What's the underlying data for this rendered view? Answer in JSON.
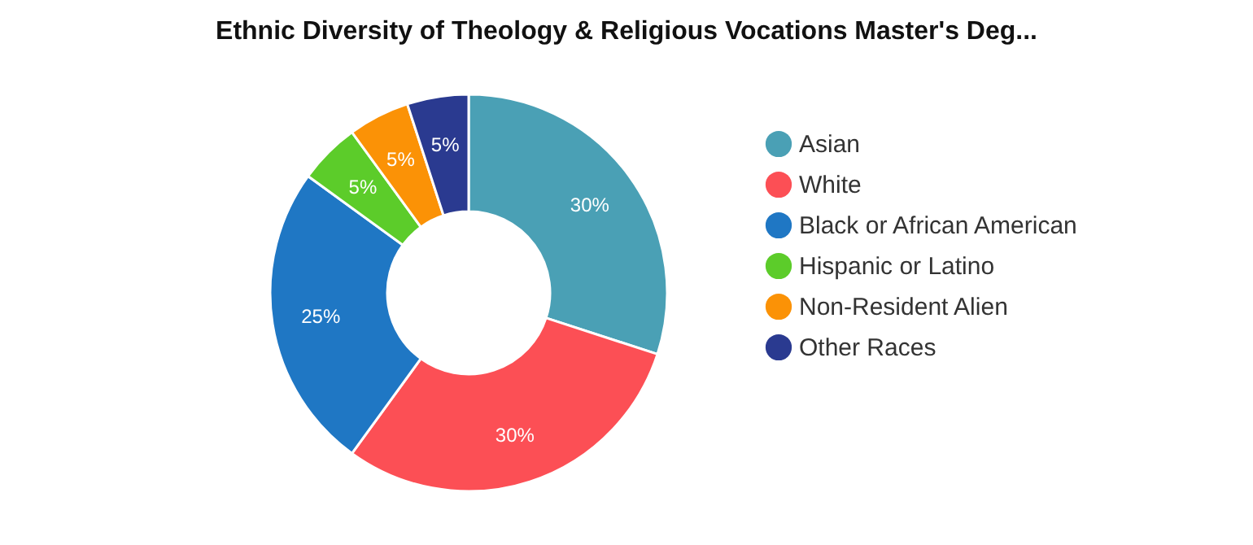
{
  "chart_data": {
    "type": "donut",
    "title": "Ethnic Diversity of Theology & Religious Vocations Master's Deg...",
    "categories": [
      "Asian",
      "White",
      "Black or African American",
      "Hispanic or Latino",
      "Non-Resident Alien",
      "Other Races"
    ],
    "values": [
      30,
      30,
      25,
      5,
      5,
      5
    ],
    "colors": [
      "#4aa0b5",
      "#fc4f55",
      "#1f77c4",
      "#5ccc2a",
      "#fb9206",
      "#2a3a90"
    ],
    "value_labels": [
      "30%",
      "30%",
      "25%",
      "5%",
      "5%",
      "5%"
    ],
    "legend": "right"
  }
}
